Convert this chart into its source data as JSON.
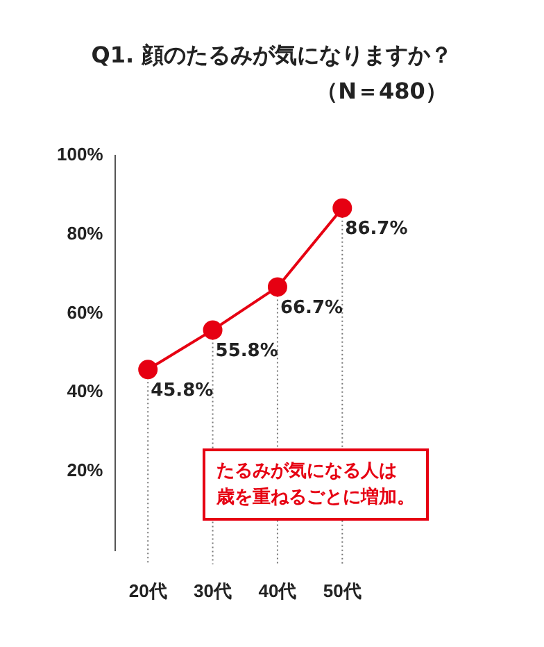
{
  "chart_data": {
    "type": "line",
    "title": "Q1. 顔のたるみが気になりますか？",
    "subtitle": "（N＝480）",
    "categories": [
      "20代",
      "30代",
      "40代",
      "50代"
    ],
    "series": [
      {
        "color": "#e60012",
        "values": [
          45.8,
          55.8,
          66.7,
          86.7
        ],
        "value_labels": [
          "45.8%",
          "55.8%",
          "66.7%",
          "86.7%"
        ]
      }
    ],
    "ylim": [
      0,
      100
    ],
    "yticks": [
      {
        "value": 20,
        "label": "20%"
      },
      {
        "value": 40,
        "label": "40%"
      },
      {
        "value": 60,
        "label": "60%"
      },
      {
        "value": 80,
        "label": "80%"
      },
      {
        "value": 100,
        "label": "100%"
      }
    ],
    "annotations": [
      "たるみが気になる人は",
      "歳を重ねるごとに増加。"
    ],
    "marker": "circle",
    "line_style": "solid",
    "grid": "x",
    "legend": false
  }
}
